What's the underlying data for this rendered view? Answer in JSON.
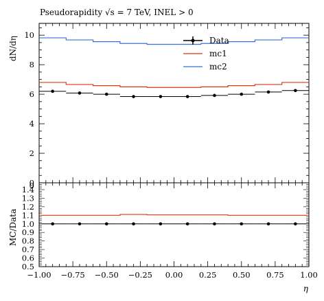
{
  "chart_data": [
    {
      "type": "line",
      "panel": "main",
      "title": "Pseudorapidity √s = 7 TeV, INEL > 0",
      "ylabel": "dN/dη",
      "ylim": [
        0,
        10.8
      ],
      "yticks": [
        0,
        2,
        4,
        6,
        8,
        10
      ],
      "bin_edges": [
        -1.0,
        -0.8,
        -0.6,
        -0.4,
        -0.2,
        0.0,
        0.2,
        0.4,
        0.6,
        0.8,
        1.0
      ],
      "series": [
        {
          "name": "Data",
          "style": "points",
          "x": [
            -0.9,
            -0.7,
            -0.5,
            -0.3,
            -0.1,
            0.1,
            0.3,
            0.5,
            0.7,
            0.9
          ],
          "values": [
            6.2,
            6.08,
            6.0,
            5.84,
            5.84,
            5.84,
            5.92,
            6.0,
            6.15,
            6.25
          ],
          "color": "#000000"
        },
        {
          "name": "mc1",
          "style": "step",
          "values": [
            6.8,
            6.66,
            6.58,
            6.5,
            6.46,
            6.46,
            6.5,
            6.58,
            6.66,
            6.8
          ],
          "color": "#d63b10"
        },
        {
          "name": "mc2",
          "style": "step",
          "values": [
            9.82,
            9.68,
            9.56,
            9.44,
            9.38,
            9.38,
            9.44,
            9.56,
            9.68,
            9.82
          ],
          "color": "#3a6fd6"
        }
      ],
      "legend": {
        "position": "top-right"
      }
    },
    {
      "type": "line",
      "panel": "ratio",
      "ylabel": "MC/Data",
      "xlabel": "η",
      "ylim": [
        0.5,
        1.48
      ],
      "yticks": [
        "0.5",
        "0.6",
        "0.7",
        "0.8",
        "0.9",
        "1.0",
        "1.1",
        "1.2",
        "1.3",
        "1.4"
      ],
      "xlim": [
        -1.0,
        1.0
      ],
      "xticks": [
        "−1.00",
        "−0.75",
        "−0.50",
        "−0.25",
        "0.00",
        "0.25",
        "0.50",
        "0.75",
        "1.00"
      ],
      "series": [
        {
          "name": "Data",
          "style": "points",
          "values": [
            1,
            1,
            1,
            1,
            1,
            1,
            1,
            1,
            1,
            1
          ],
          "color": "#000000"
        },
        {
          "name": "mc1",
          "style": "step",
          "values": [
            1.1,
            1.1,
            1.1,
            1.11,
            1.105,
            1.105,
            1.105,
            1.1,
            1.1,
            1.1
          ],
          "color": "#d63b10"
        }
      ]
    }
  ]
}
